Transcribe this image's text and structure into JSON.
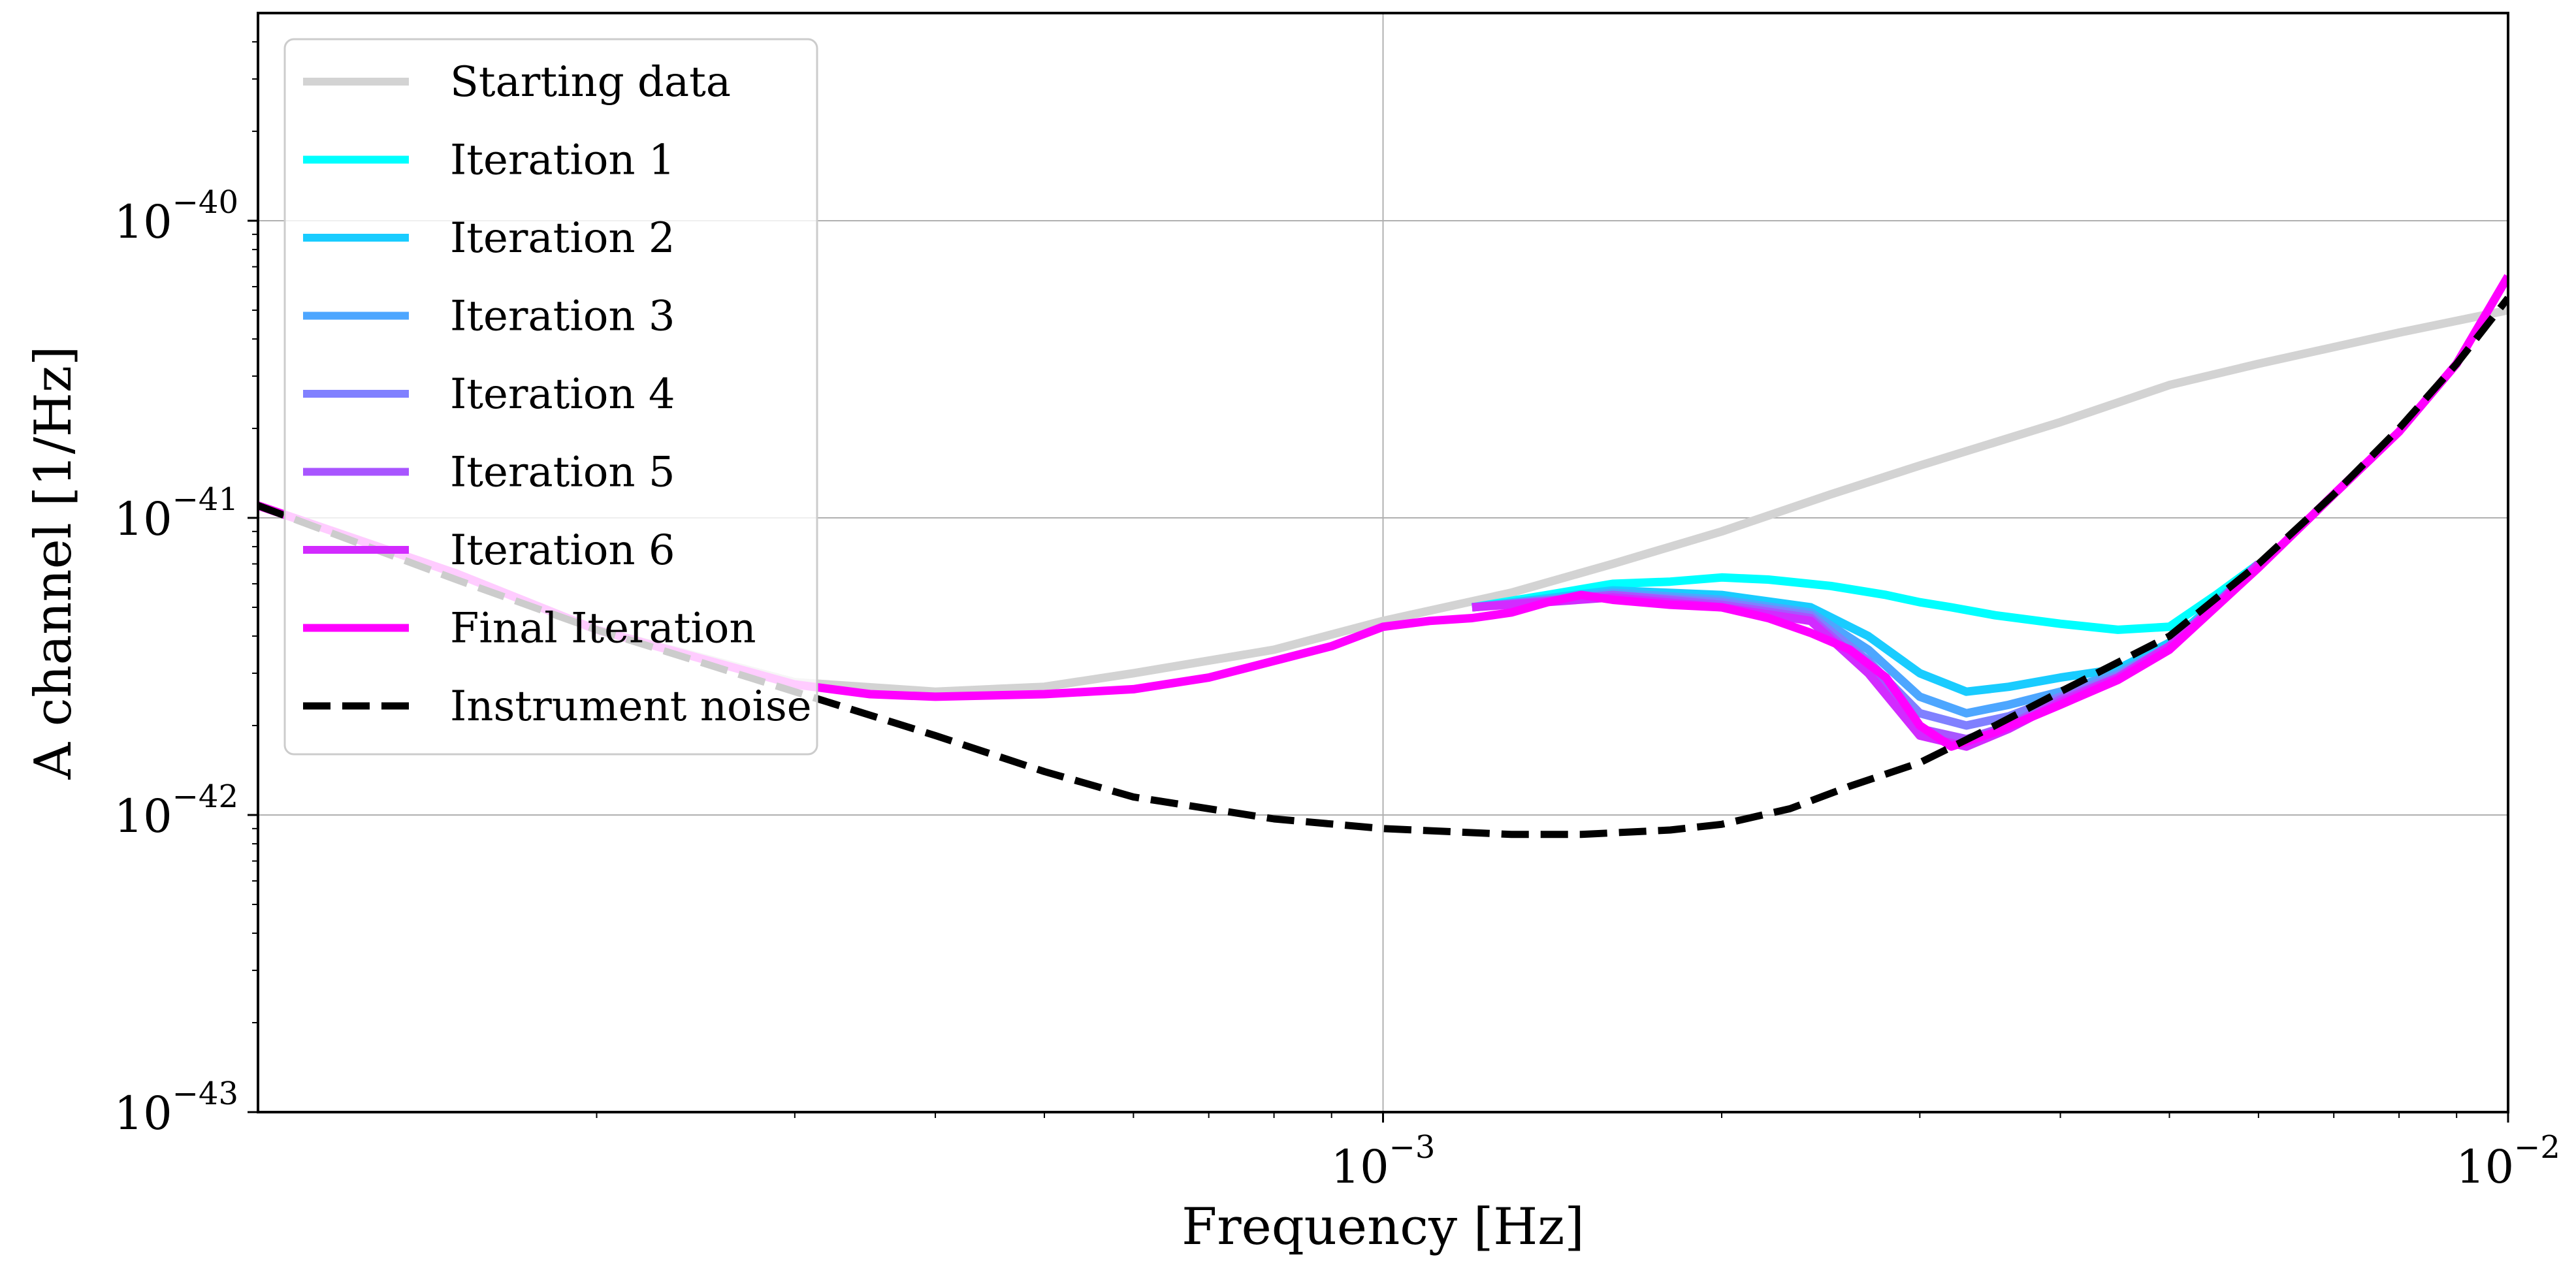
{
  "chart_data": {
    "type": "line",
    "title": "",
    "xlabel": "Frequency [Hz]",
    "ylabel": "A channel [1/Hz]",
    "x_scale": "log",
    "y_scale": "log",
    "xlim": [
      0.0001,
      0.01
    ],
    "ylim": [
      1e-43,
      5e-40
    ],
    "grid": true,
    "legend_position": "top-left",
    "x_ticks": [
      {
        "value": 0.001,
        "base": "10",
        "exp": "−3"
      },
      {
        "value": 0.01,
        "base": "10",
        "exp": "−2"
      }
    ],
    "y_ticks": [
      {
        "value": 1e-43,
        "base": "10",
        "exp": "−43"
      },
      {
        "value": 1e-42,
        "base": "10",
        "exp": "−42"
      },
      {
        "value": 1e-41,
        "base": "10",
        "exp": "−41"
      },
      {
        "value": 1e-40,
        "base": "10",
        "exp": "−40"
      }
    ],
    "series": [
      {
        "name": "Starting data",
        "color": "#d3d3d3",
        "style": "solid",
        "x": [
          0.0001,
          0.00015,
          0.0002,
          0.0003,
          0.0004,
          0.0005,
          0.0006,
          0.0008,
          0.001,
          0.0013,
          0.0016,
          0.002,
          0.0025,
          0.003,
          0.004,
          0.005,
          0.006,
          0.008,
          0.01
        ],
        "y": [
          1.1e-41,
          6.5e-42,
          4.2e-42,
          2.8e-42,
          2.6e-42,
          2.7e-42,
          3e-42,
          3.6e-42,
          4.5e-42,
          5.6e-42,
          7e-42,
          9e-42,
          1.2e-41,
          1.5e-41,
          2.1e-41,
          2.8e-41,
          3.3e-41,
          4.2e-41,
          5e-41
        ]
      },
      {
        "name": "Iteration 1",
        "color": "#00ffff",
        "style": "solid",
        "x": [
          0.0012,
          0.0014,
          0.0016,
          0.0018,
          0.002,
          0.0022,
          0.0025,
          0.0028,
          0.003,
          0.0032,
          0.0035,
          0.004,
          0.0045,
          0.005,
          0.0055,
          0.006
        ],
        "y": [
          5e-42,
          5.5e-42,
          6e-42,
          6.1e-42,
          6.3e-42,
          6.2e-42,
          5.9e-42,
          5.5e-42,
          5.2e-42,
          5e-42,
          4.7e-42,
          4.4e-42,
          4.2e-42,
          4.3e-42,
          5.5e-42,
          7e-42
        ]
      },
      {
        "name": "Iteration 2",
        "color": "#19ccff",
        "style": "solid",
        "x": [
          0.0012,
          0.0016,
          0.002,
          0.0024,
          0.0027,
          0.003,
          0.0033,
          0.0036,
          0.004,
          0.0045,
          0.005,
          0.0055,
          0.006
        ],
        "y": [
          5e-42,
          5.7e-42,
          5.5e-42,
          5e-42,
          4e-42,
          3e-42,
          2.6e-42,
          2.7e-42,
          2.9e-42,
          3.1e-42,
          3.8e-42,
          5.2e-42,
          7e-42
        ]
      },
      {
        "name": "Iteration 3",
        "color": "#4da6ff",
        "style": "solid",
        "x": [
          0.0012,
          0.0016,
          0.002,
          0.0024,
          0.0027,
          0.003,
          0.0033,
          0.0036,
          0.004,
          0.0045,
          0.005,
          0.0055,
          0.006
        ],
        "y": [
          5e-42,
          5.6e-42,
          5.3e-42,
          4.8e-42,
          3.6e-42,
          2.5e-42,
          2.2e-42,
          2.35e-42,
          2.6e-42,
          3e-42,
          3.7e-42,
          5.1e-42,
          7e-42
        ]
      },
      {
        "name": "Iteration 4",
        "color": "#8080ff",
        "style": "solid",
        "x": [
          0.0012,
          0.0016,
          0.002,
          0.0024,
          0.0027,
          0.003,
          0.0033,
          0.0036,
          0.004,
          0.0045,
          0.005,
          0.0055,
          0.006
        ],
        "y": [
          5e-42,
          5.5e-42,
          5.2e-42,
          4.7e-42,
          3.3e-42,
          2.2e-42,
          2e-42,
          2.15e-42,
          2.5e-42,
          2.95e-42,
          3.7e-42,
          5.1e-42,
          7e-42
        ]
      },
      {
        "name": "Iteration 5",
        "color": "#a855ff",
        "style": "solid",
        "x": [
          0.0012,
          0.0016,
          0.002,
          0.0024,
          0.0027,
          0.003,
          0.0033,
          0.0036,
          0.004,
          0.0045,
          0.005,
          0.0055,
          0.006
        ],
        "y": [
          5e-42,
          5.5e-42,
          5.1e-42,
          4.6e-42,
          3.1e-42,
          1.95e-42,
          1.8e-42,
          2e-42,
          2.45e-42,
          2.9e-42,
          3.7e-42,
          5.1e-42,
          7e-42
        ]
      },
      {
        "name": "Iteration 6",
        "color": "#d22bff",
        "style": "solid",
        "x": [
          0.0012,
          0.0016,
          0.002,
          0.0024,
          0.0027,
          0.003,
          0.0033,
          0.0036,
          0.004,
          0.0045,
          0.005,
          0.0055,
          0.006
        ],
        "y": [
          5e-42,
          5.4e-42,
          5e-42,
          4.5e-42,
          3e-42,
          1.85e-42,
          1.7e-42,
          1.95e-42,
          2.4e-42,
          2.9e-42,
          3.7e-42,
          5.1e-42,
          7e-42
        ]
      },
      {
        "name": "Final Iteration",
        "color": "#ff00ff",
        "style": "solid",
        "x": [
          0.0001,
          0.00015,
          0.0002,
          0.0003,
          0.00035,
          0.0004,
          0.0005,
          0.0006,
          0.0007,
          0.0008,
          0.0009,
          0.001,
          0.0011,
          0.0012,
          0.0013,
          0.0014,
          0.0015,
          0.0016,
          0.0018,
          0.002,
          0.0022,
          0.0024,
          0.0026,
          0.0028,
          0.003,
          0.0032,
          0.0035,
          0.004,
          0.0045,
          0.005,
          0.006,
          0.007,
          0.008,
          0.009,
          0.01
        ],
        "y": [
          1.1e-41,
          6.5e-42,
          4.2e-42,
          2.75e-42,
          2.55e-42,
          2.5e-42,
          2.55e-42,
          2.65e-42,
          2.9e-42,
          3.3e-42,
          3.7e-42,
          4.3e-42,
          4.5e-42,
          4.6e-42,
          4.8e-42,
          5.2e-42,
          5.5e-42,
          5.3e-42,
          5.1e-42,
          5e-42,
          4.6e-42,
          4.1e-42,
          3.6e-42,
          2.9e-42,
          2e-42,
          1.7e-42,
          1.9e-42,
          2.35e-42,
          2.85e-42,
          3.6e-42,
          6.8e-42,
          1.2e-41,
          1.95e-41,
          3.3e-41,
          6.5e-41
        ]
      },
      {
        "name": "Instrument noise",
        "color": "#000000",
        "style": "dashed",
        "x": [
          0.0001,
          0.00015,
          0.0002,
          0.0003,
          0.0004,
          0.0005,
          0.0006,
          0.0008,
          0.001,
          0.0013,
          0.0015,
          0.0018,
          0.002,
          0.0023,
          0.0026,
          0.003,
          0.0035,
          0.004,
          0.005,
          0.006,
          0.007,
          0.008,
          0.009,
          0.01
        ],
        "y": [
          1.1e-41,
          6.2e-42,
          4.2e-42,
          2.6e-42,
          1.85e-42,
          1.4e-42,
          1.15e-42,
          9.7e-43,
          9e-43,
          8.6e-43,
          8.6e-43,
          8.9e-43,
          9.3e-43,
          1.05e-42,
          1.25e-42,
          1.5e-42,
          2e-42,
          2.6e-42,
          4e-42,
          7e-42,
          1.2e-41,
          2e-41,
          3.3e-41,
          5.5e-41
        ]
      }
    ]
  }
}
